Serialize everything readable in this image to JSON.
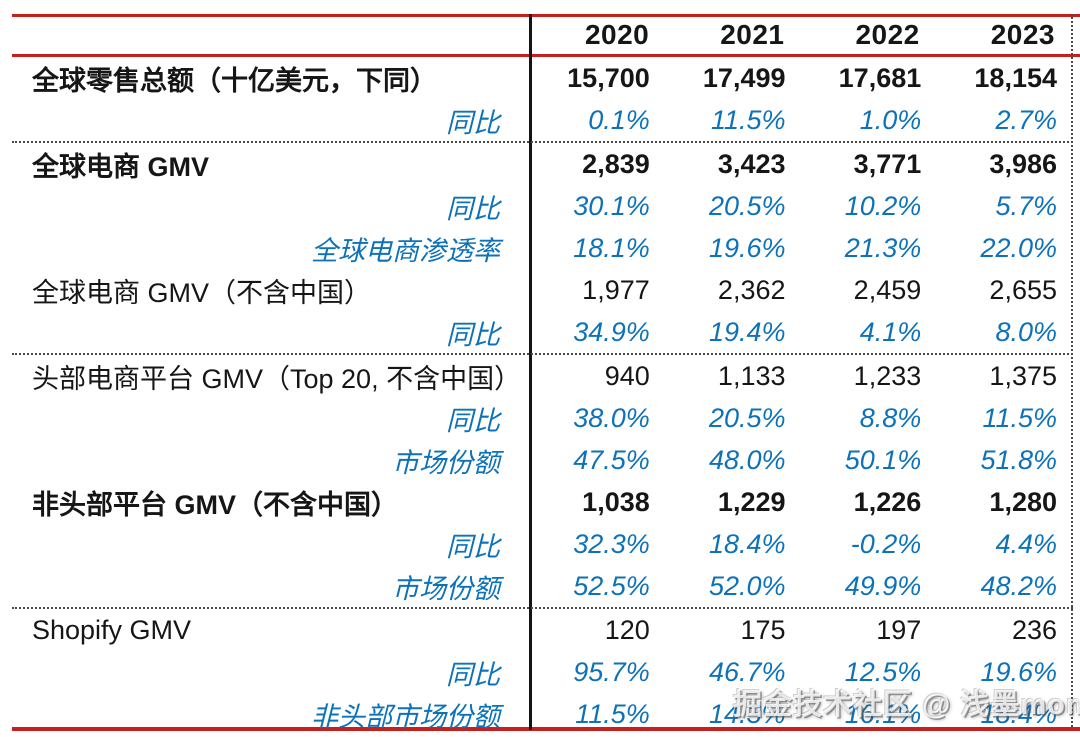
{
  "chart_data": {
    "type": "table",
    "unit_note": "十亿美元",
    "columns": [
      "2020",
      "2021",
      "2022",
      "2023"
    ],
    "rows": [
      {
        "label": "全球零售总额（十亿美元，下同）",
        "label_style": "bold-left",
        "value_style": "bold",
        "values": [
          "15,700",
          "17,499",
          "17,681",
          "18,154"
        ],
        "separator_after": false
      },
      {
        "label": "同比",
        "label_style": "blue-right",
        "value_style": "blue",
        "values": [
          "0.1%",
          "11.5%",
          "1.0%",
          "2.7%"
        ],
        "separator_after": true
      },
      {
        "label": "全球电商 GMV",
        "label_style": "bold-left",
        "value_style": "bold",
        "values": [
          "2,839",
          "3,423",
          "3,771",
          "3,986"
        ],
        "separator_after": false
      },
      {
        "label": "同比",
        "label_style": "blue-right",
        "value_style": "blue",
        "values": [
          "30.1%",
          "20.5%",
          "10.2%",
          "5.7%"
        ],
        "separator_after": false
      },
      {
        "label": "全球电商渗透率",
        "label_style": "blue-right",
        "value_style": "blue",
        "values": [
          "18.1%",
          "19.6%",
          "21.3%",
          "22.0%"
        ],
        "separator_after": false
      },
      {
        "label": "全球电商 GMV（不含中国）",
        "label_style": "normal-left",
        "value_style": "normal",
        "values": [
          "1,977",
          "2,362",
          "2,459",
          "2,655"
        ],
        "separator_after": false
      },
      {
        "label": "同比",
        "label_style": "blue-right",
        "value_style": "blue",
        "values": [
          "34.9%",
          "19.4%",
          "4.1%",
          "8.0%"
        ],
        "separator_after": true
      },
      {
        "label": "头部电商平台 GMV（Top 20, 不含中国）",
        "label_style": "normal-left",
        "value_style": "normal",
        "values": [
          "940",
          "1,133",
          "1,233",
          "1,375"
        ],
        "separator_after": false
      },
      {
        "label": "同比",
        "label_style": "blue-right",
        "value_style": "blue",
        "values": [
          "38.0%",
          "20.5%",
          "8.8%",
          "11.5%"
        ],
        "separator_after": false
      },
      {
        "label": "市场份额",
        "label_style": "blue-right",
        "value_style": "blue",
        "values": [
          "47.5%",
          "48.0%",
          "50.1%",
          "51.8%"
        ],
        "separator_after": false
      },
      {
        "label": "非头部平台 GMV（不含中国）",
        "label_style": "bold-left",
        "value_style": "bold",
        "values": [
          "1,038",
          "1,229",
          "1,226",
          "1,280"
        ],
        "separator_after": false
      },
      {
        "label": "同比",
        "label_style": "blue-right",
        "value_style": "blue",
        "values": [
          "32.3%",
          "18.4%",
          "-0.2%",
          "4.4%"
        ],
        "separator_after": false
      },
      {
        "label": "市场份额",
        "label_style": "blue-right",
        "value_style": "blue",
        "values": [
          "52.5%",
          "52.0%",
          "49.9%",
          "48.2%"
        ],
        "separator_after": true
      },
      {
        "label": "Shopify GMV",
        "label_style": "normal-left",
        "value_style": "normal",
        "values": [
          "120",
          "175",
          "197",
          "236"
        ],
        "separator_after": false
      },
      {
        "label": "同比",
        "label_style": "blue-right",
        "value_style": "blue",
        "values": [
          "95.7%",
          "46.7%",
          "12.5%",
          "19.6%"
        ],
        "separator_after": false
      },
      {
        "label": "非头部市场份额",
        "label_style": "blue-right",
        "value_style": "blue",
        "values": [
          "11.5%",
          "14.3%",
          "16.1%",
          "18.4%"
        ],
        "separator_after": false
      }
    ]
  },
  "watermark": {
    "text": "掘金技术社区 @ 浅墨momo"
  },
  "colors": {
    "accent_red": "#c4201d",
    "blue": "#0d72b9",
    "text_black": "#161616"
  }
}
